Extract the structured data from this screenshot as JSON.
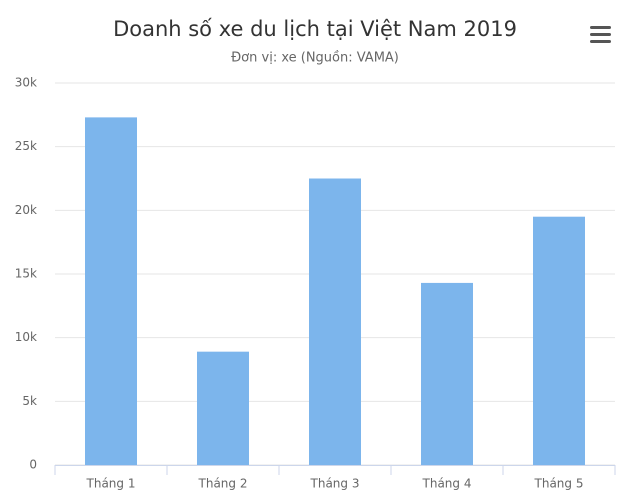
{
  "chart_data": {
    "type": "bar",
    "title": "Doanh số xe du lịch tại Việt Nam 2019",
    "subtitle": "Đơn vị: xe (Nguồn: VAMA)",
    "categories": [
      "Tháng 1",
      "Tháng 2",
      "Tháng 3",
      "Tháng 4",
      "Tháng 5"
    ],
    "values": [
      27300,
      8900,
      22500,
      14300,
      19500
    ],
    "color": "#7cb5ec",
    "ylim": [
      0,
      30000
    ],
    "yticks": [
      0,
      {
        "value": 5000,
        "label": "5k"
      },
      {
        "value": 10000,
        "label": "10k"
      },
      {
        "value": 15000,
        "label": "15k"
      },
      {
        "value": 20000,
        "label": "20k"
      },
      {
        "value": 25000,
        "label": "25k"
      },
      {
        "value": 30000,
        "label": "30k"
      }
    ],
    "grid": true
  }
}
